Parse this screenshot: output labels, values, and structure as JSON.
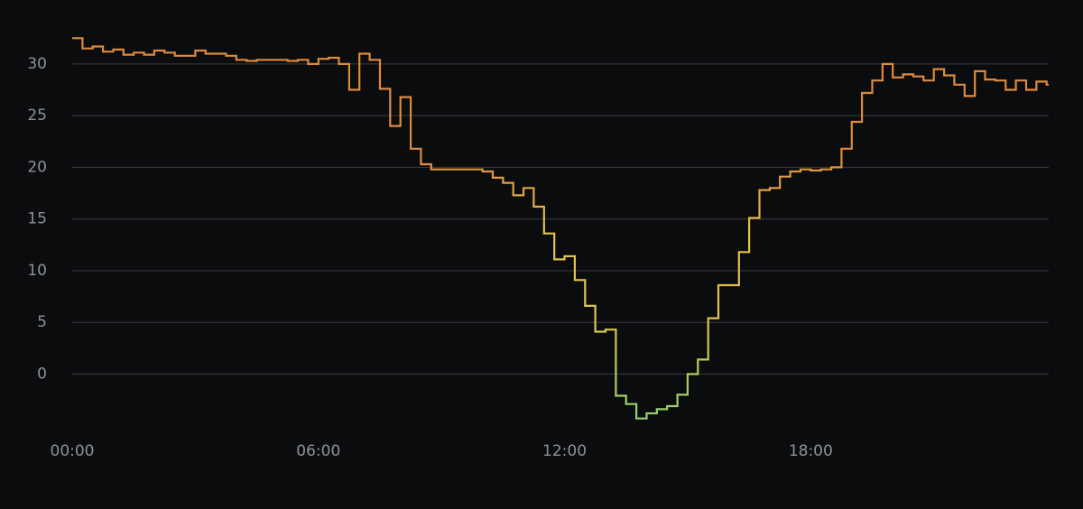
{
  "chart_data": {
    "type": "line",
    "step": true,
    "grid": true,
    "y_ticks": [
      0,
      5,
      10,
      15,
      20,
      25,
      30
    ],
    "y_tick_labels": [
      "0",
      "5",
      "10",
      "15",
      "20",
      "25",
      "30"
    ],
    "ylim": [
      -4.5,
      32.7
    ],
    "x_ticks": [
      0,
      6,
      12,
      18
    ],
    "x_tick_labels": [
      "00:00",
      "06:00",
      "12:00",
      "18:00"
    ],
    "xlim": [
      0,
      23.8
    ],
    "colors": {
      "warm": "#dd8a3e",
      "mid": "#e3c24c",
      "cold": "#8fd36e",
      "grid": "#3a3c40",
      "tick_text": "#8e9196",
      "background": "#0b0c0e"
    },
    "series": [
      {
        "x": [
          0,
          0.25,
          0.5,
          0.75,
          1,
          1.25,
          1.5,
          1.75,
          2,
          2.25,
          2.5,
          2.75,
          3,
          3.25,
          3.5,
          3.75,
          4,
          4.25,
          4.5,
          4.75,
          5,
          5.25,
          5.5,
          5.75,
          6,
          6.25,
          6.5,
          6.75,
          7,
          7.25,
          7.5,
          7.75,
          8,
          8.25,
          8.5,
          8.75,
          9,
          9.25,
          9.5,
          9.75,
          10,
          10.25,
          10.5,
          10.75,
          11,
          11.25,
          11.5,
          11.75,
          12,
          12.25,
          12.5,
          12.75,
          13,
          13.25,
          13.5,
          13.75,
          14,
          14.25,
          14.5,
          14.75,
          15,
          15.25,
          15.5,
          15.75,
          16,
          16.25,
          16.5,
          16.75,
          17,
          17.25,
          17.5,
          17.75,
          18,
          18.25,
          18.5,
          18.75,
          19,
          19.25,
          19.5,
          19.75,
          20,
          20.25,
          20.5,
          20.75,
          21,
          21.25,
          21.5,
          21.75,
          22,
          22.25,
          22.5,
          22.75,
          23,
          23.25,
          23.5,
          23.75
        ],
        "y": [
          32.5,
          31.5,
          31.7,
          31.2,
          31.4,
          30.9,
          31.1,
          30.9,
          31.3,
          31.1,
          30.8,
          30.8,
          31.3,
          31.0,
          31.0,
          30.8,
          30.4,
          30.3,
          30.4,
          30.4,
          30.4,
          30.3,
          30.4,
          30.0,
          30.5,
          30.6,
          30.0,
          27.5,
          31.0,
          30.4,
          27.6,
          24.0,
          26.8,
          21.8,
          20.3,
          19.8,
          19.8,
          19.8,
          19.8,
          19.8,
          19.6,
          19.0,
          18.5,
          17.3,
          18.0,
          16.2,
          13.6,
          11.1,
          11.4,
          9.1,
          6.6,
          4.1,
          4.3,
          -2.1,
          -2.9,
          -4.3,
          -3.8,
          -3.4,
          -3.1,
          -2.0,
          0.0,
          1.4,
          5.4,
          8.6,
          8.6,
          11.8,
          15.1,
          17.8,
          18.0,
          19.1,
          19.6,
          19.8,
          19.7,
          19.8,
          20.0,
          21.8,
          24.4,
          27.2,
          28.4,
          30.0,
          28.7,
          29.0,
          28.8,
          28.4,
          29.5,
          28.9,
          28.0,
          26.9,
          29.3,
          28.5,
          28.4,
          27.5,
          28.4,
          27.5,
          28.3,
          28.0
        ]
      }
    ]
  }
}
